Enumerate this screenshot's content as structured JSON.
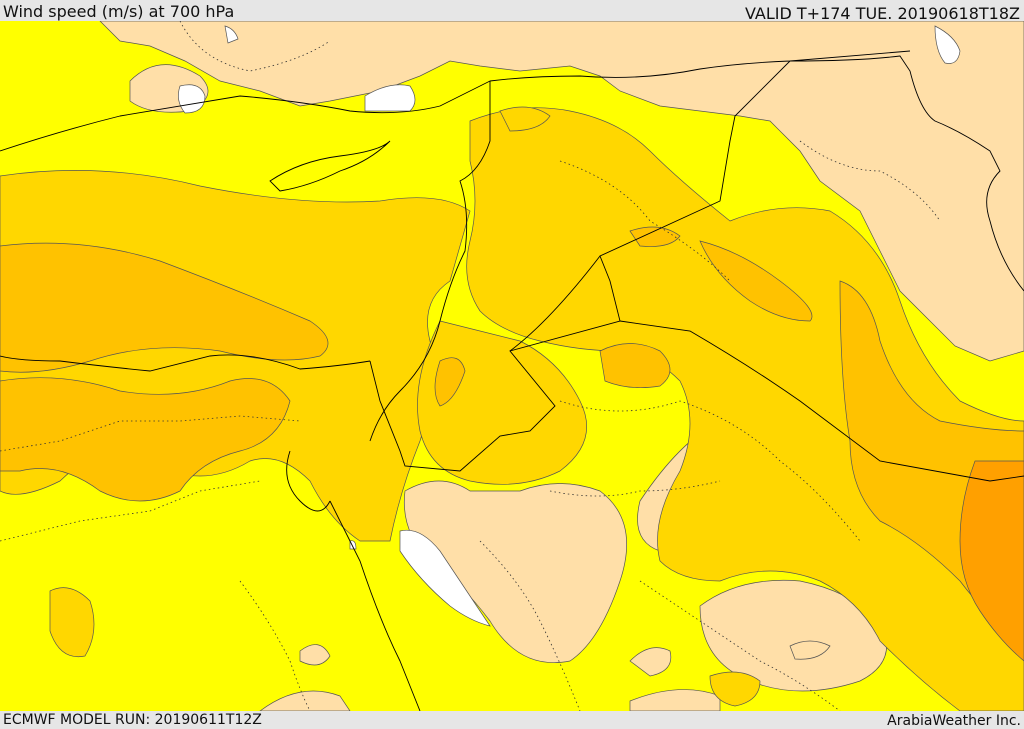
{
  "header": {
    "title": "Wind speed (m/s) at 700 hPa",
    "valid": "VALID T+174 TUE. 20190618T18Z"
  },
  "footer": {
    "model_run": "ECMWF MODEL RUN: 20190611T12Z",
    "credit": "ArabiaWeather Inc."
  },
  "colors": {
    "lt5": "#ffdfa8",
    "c5_10": "#ffff00",
    "c10_15": "#ffd700",
    "c15_20": "#ffc200",
    "c20_25": "#ffa000",
    "sea_missing": "#ffffff",
    "contour": "#555555",
    "border": "#000000"
  }
}
